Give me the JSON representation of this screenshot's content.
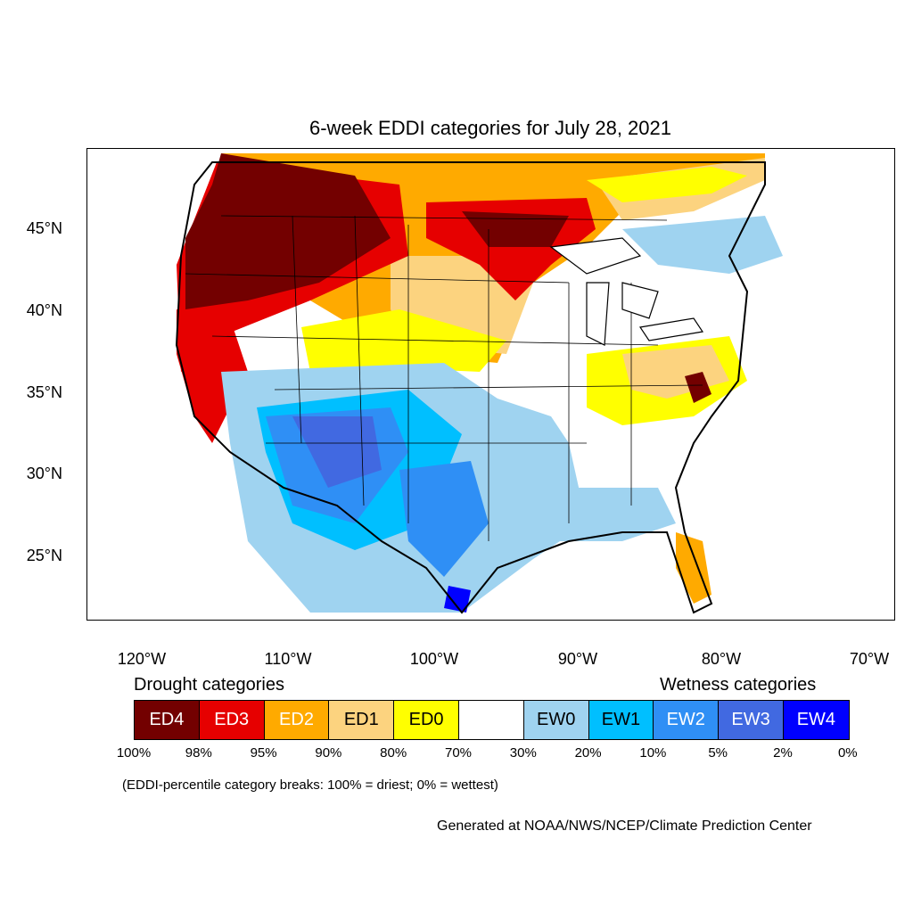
{
  "title": "6-week EDDI categories for July 28, 2021",
  "map": {
    "lat_ticks": [
      "45°N",
      "40°N",
      "35°N",
      "30°N",
      "25°N"
    ],
    "lon_ticks": [
      "120°W",
      "110°W",
      "100°W",
      "90°W",
      "80°W",
      "70°W"
    ]
  },
  "legend": {
    "drought_heading": "Drought categories",
    "wetness_heading": "Wetness categories",
    "categories": [
      {
        "label": "ED4",
        "color": "#730000",
        "text_color": "#ffffff"
      },
      {
        "label": "ED3",
        "color": "#e60000",
        "text_color": "#ffffff"
      },
      {
        "label": "ED2",
        "color": "#ffaa00",
        "text_color": "#ffffff"
      },
      {
        "label": "ED1",
        "color": "#fcd37f",
        "text_color": "#000000"
      },
      {
        "label": "ED0",
        "color": "#ffff00",
        "text_color": "#000000"
      },
      {
        "label": "",
        "color": "#ffffff",
        "text_color": "#000000"
      },
      {
        "label": "EW0",
        "color": "#9fd3f0",
        "text_color": "#000000"
      },
      {
        "label": "EW1",
        "color": "#00bfff",
        "text_color": "#000000"
      },
      {
        "label": "EW2",
        "color": "#2f8ff5",
        "text_color": "#ffffff"
      },
      {
        "label": "EW3",
        "color": "#4169e1",
        "text_color": "#ffffff"
      },
      {
        "label": "EW4",
        "color": "#0000ff",
        "text_color": "#ffffff"
      }
    ],
    "breaks": [
      "100%",
      "98%",
      "95%",
      "90%",
      "80%",
      "70%",
      "30%",
      "20%",
      "10%",
      "5%",
      "2%",
      "0%"
    ]
  },
  "note": "(EDDI-percentile category breaks: 100% = driest; 0% = wettest)",
  "credit": "Generated at NOAA/NWS/NCEP/Climate Prediction Center"
}
